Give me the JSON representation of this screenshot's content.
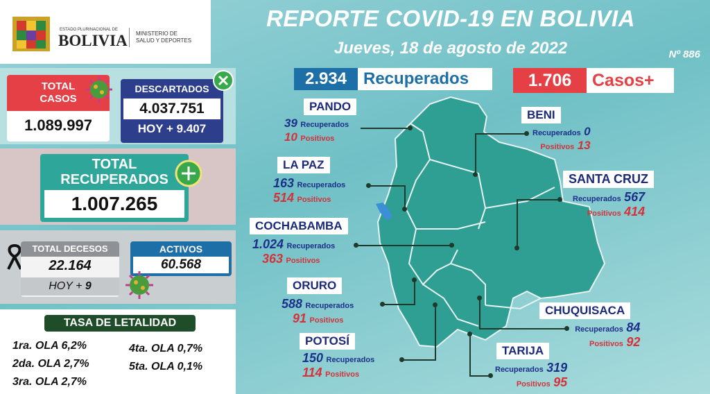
{
  "header": {
    "logo_line1": "ESTADO PLURINACIONAL DE",
    "logo_line2": "BOLIVIA",
    "ministry_line1": "MINISTERIO DE",
    "ministry_line2": "SALUD Y DEPORTES",
    "title": "REPORTE COVID-19 EN BOLIVIA",
    "date": "Jueves, 18 de agosto de 2022",
    "report_number": "Nº 886"
  },
  "summary": {
    "total_casos_label_1": "TOTAL",
    "total_casos_label_2": "CASOS",
    "total_casos": "1.089.997",
    "descartados_label": "DESCARTADOS",
    "descartados": "4.037.751",
    "descartados_hoy": "HOY + 9.407",
    "recuperados_label_1": "TOTAL",
    "recuperados_label_2": "RECUPERADOS",
    "total_recuperados": "1.007.265",
    "decesos_label": "TOTAL DECESOS",
    "decesos": "22.164",
    "decesos_hoy_prefix": "HOY +",
    "decesos_hoy_value": "9",
    "activos_label": "ACTIVOS",
    "activos": "60.568"
  },
  "letalidad": {
    "title": "TASA DE LETALIDAD",
    "olas": [
      "1ra. OLA 6,2%",
      "2da. OLA 2,7%",
      "3ra. OLA 2,7%",
      "4ta. OLA 0,7%",
      "5ta. OLA 0,1%"
    ]
  },
  "daily": {
    "recuperados_value": "2.934",
    "recuperados_label": "Recuperados",
    "casos_value": "1.706",
    "casos_label": "Casos+"
  },
  "labels": {
    "recuperados": "Recuperados",
    "positivos": "Positivos"
  },
  "departments": {
    "pando": {
      "name": "PANDO",
      "recuperados": "39",
      "positivos": "10"
    },
    "la_paz": {
      "name": "LA PAZ",
      "recuperados": "163",
      "positivos": "514"
    },
    "cochabamba": {
      "name": "COCHABAMBA",
      "recuperados": "1.024",
      "positivos": "363"
    },
    "oruro": {
      "name": "ORURO",
      "recuperados": "588",
      "positivos": "91"
    },
    "potosi": {
      "name": "POTOSÍ",
      "recuperados": "150",
      "positivos": "114"
    },
    "beni": {
      "name": "BENI",
      "recuperados": "0",
      "positivos": "13"
    },
    "santa_cruz": {
      "name": "SANTA CRUZ",
      "recuperados": "567",
      "positivos": "414"
    },
    "chuquisaca": {
      "name": "CHUQUISACA",
      "recuperados": "84",
      "positivos": "92"
    },
    "tarija": {
      "name": "TARIJA",
      "recuperados": "319",
      "positivos": "95"
    }
  },
  "colors": {
    "background": "#79c5cb",
    "map_fill": "#2f9e93",
    "red": "#e54046",
    "navy": "#2c3e8c",
    "blue": "#1d6fa8",
    "dark_green": "#1f4d2a"
  },
  "icons": [
    "virus-icon",
    "close-circle-icon",
    "plus-circle-icon",
    "mourning-ribbon-icon",
    "bolivia-coat-of-arms-icon"
  ]
}
